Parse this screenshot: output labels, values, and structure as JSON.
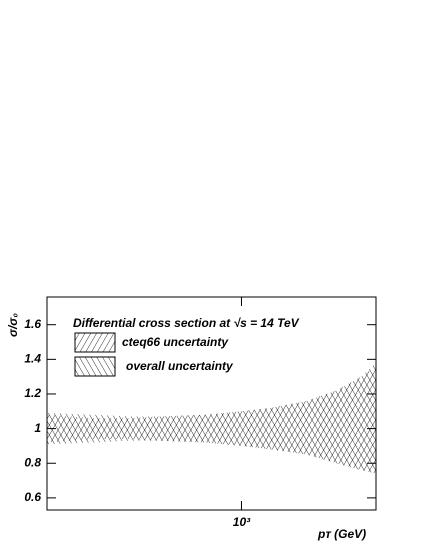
{
  "chart_data": {
    "type": "band",
    "annotation": "Differential cross section at √s = 14 TeV",
    "x_label": "pᴛ (GeV)",
    "y_label": "σ/σ₀",
    "x": [
      300,
      400,
      500,
      600,
      800,
      1000,
      1200,
      1500,
      1800,
      2100,
      2300
    ],
    "series": [
      {
        "name": "cteq66 uncertainty",
        "hatch": "forward",
        "color": "#000000",
        "upper": [
          1.08,
          1.06,
          1.06,
          1.07,
          1.08,
          1.1,
          1.12,
          1.16,
          1.22,
          1.3,
          1.36
        ],
        "lower": [
          0.92,
          0.94,
          0.94,
          0.93,
          0.92,
          0.9,
          0.88,
          0.85,
          0.8,
          0.76,
          0.74
        ]
      },
      {
        "name": "overall uncertainty",
        "hatch": "backward",
        "color": "#000000",
        "upper": [
          1.09,
          1.08,
          1.07,
          1.07,
          1.08,
          1.1,
          1.12,
          1.16,
          1.22,
          1.3,
          1.38
        ],
        "lower": [
          0.91,
          0.92,
          0.93,
          0.93,
          0.92,
          0.9,
          0.88,
          0.85,
          0.8,
          0.76,
          0.74
        ]
      }
    ],
    "xlim": [
      300,
      2300
    ],
    "xlog": true,
    "xticks": [
      {
        "value": 1000,
        "label": "10³"
      }
    ],
    "ylim": [
      0.53,
      1.76
    ],
    "yticks": [
      0.6,
      0.8,
      1,
      1.2,
      1.4,
      1.6
    ]
  }
}
